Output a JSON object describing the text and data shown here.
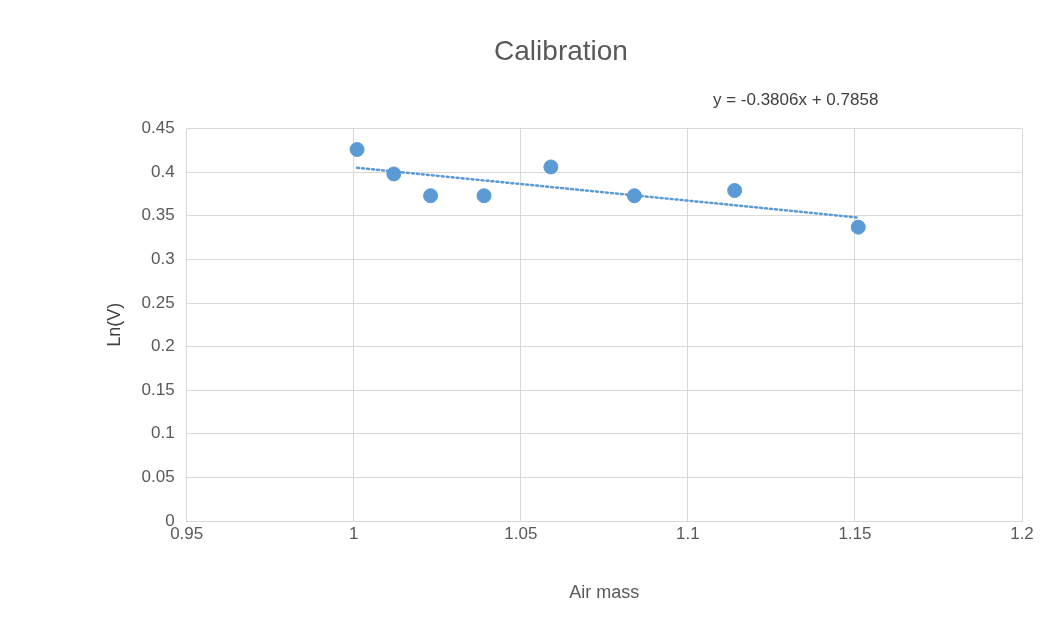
{
  "chart_data": {
    "type": "scatter",
    "title": "Calibration",
    "xlabel": "Air mass",
    "ylabel": "Ln(V)",
    "xlim": [
      0.95,
      1.2
    ],
    "xticks": [
      0.95,
      1,
      1.05,
      1.1,
      1.15,
      1.2
    ],
    "ylim": [
      0,
      0.45
    ],
    "yticks": [
      0,
      0.05,
      0.1,
      0.15,
      0.2,
      0.25,
      0.3,
      0.35,
      0.4,
      0.45
    ],
    "grid": true,
    "legend": false,
    "marker": "circle",
    "annotations": [
      "y = -0.3806x + 0.7858"
    ],
    "series": [
      {
        "color": "#5b9bd5",
        "x": [
          1.001,
          1.012,
          1.023,
          1.039,
          1.059,
          1.084,
          1.114,
          1.151
        ],
        "values": [
          0.426,
          0.398,
          0.373,
          0.373,
          0.406,
          0.373,
          0.379,
          0.337
        ]
      },
      {
        "type": "line",
        "color": "#5b9bd5",
        "line_style": "dotted",
        "marker": "none",
        "x": [
          1.001,
          1.151
        ],
        "values": [
          0.405,
          0.348
        ]
      }
    ]
  }
}
